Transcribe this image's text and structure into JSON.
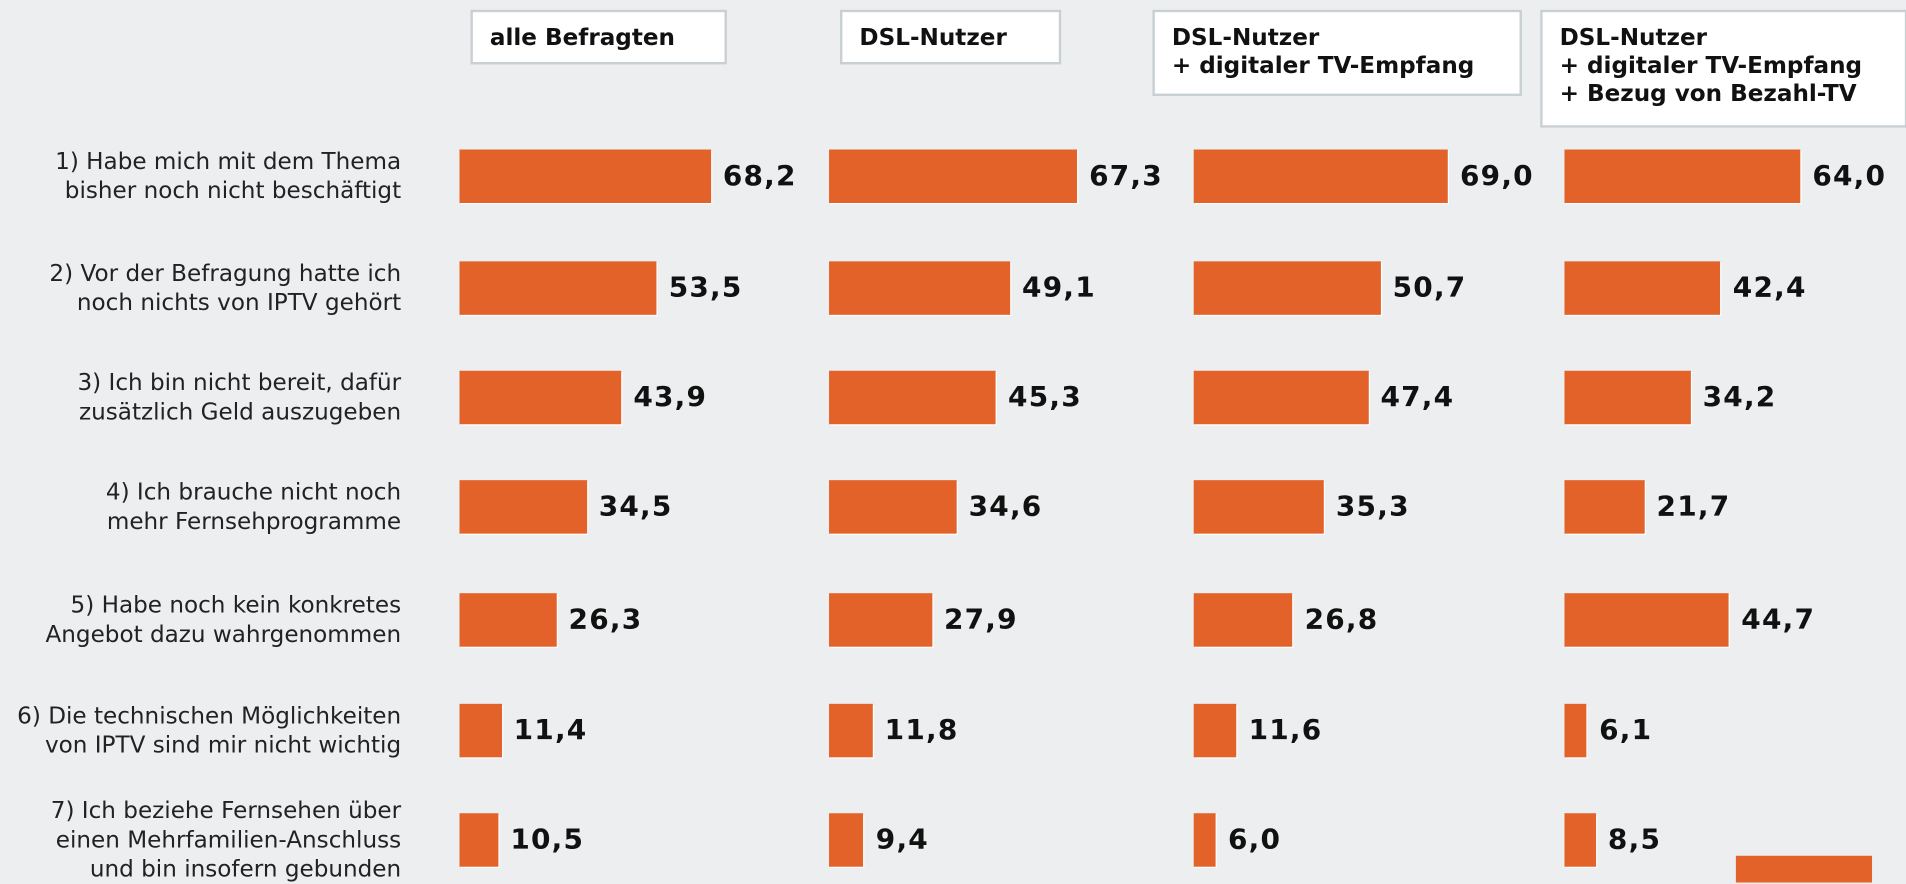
{
  "chart_data": {
    "type": "bar",
    "orientation": "horizontal",
    "categories": [
      "1) Habe mich mit dem Thema\nbisher noch nicht beschäftigt",
      "2) Vor der Befragung hatte ich\nnoch nichts von IPTV gehört",
      "3) Ich bin nicht bereit, dafür\nzusätzlich Geld auszugeben",
      "4) Ich brauche nicht  noch\nmehr Fernsehprogramme",
      "5) Habe noch kein konkretes\nAngebot dazu wahrgenommen",
      "6) Die technischen Möglichkeiten\nvon IPTV sind mir nicht wichtig",
      "7) Ich beziehe Fernsehen über\neinen Mehrfamilien-Anschluss\nund bin insofern gebunden"
    ],
    "series": [
      {
        "name": "alle Befragten",
        "color": "#e2622a",
        "values": [
          68.2,
          53.5,
          43.9,
          34.5,
          26.3,
          11.4,
          10.5
        ],
        "value_labels": [
          "68,2",
          "53,5",
          "43,9",
          "34,5",
          "26,3",
          "11,4",
          "10,5"
        ]
      },
      {
        "name": "DSL-Nutzer",
        "color": "#e2622a",
        "values": [
          67.3,
          49.1,
          45.3,
          34.6,
          27.9,
          11.8,
          9.4
        ],
        "value_labels": [
          "67,3",
          "49,1",
          "45,3",
          "34,6",
          "27,9",
          "11,8",
          "9,4"
        ]
      },
      {
        "name": "DSL-Nutzer\n+ digitaler TV-Empfang",
        "color": "#e2622a",
        "values": [
          69.0,
          50.7,
          47.4,
          35.3,
          26.8,
          11.6,
          6.0
        ],
        "value_labels": [
          "69,0",
          "50,7",
          "47,4",
          "35,3",
          "26,8",
          "11,6",
          "6,0"
        ]
      },
      {
        "name": "DSL-Nutzer\n+ digitaler TV-Empfang\n+ Bezug von Bezahl-TV",
        "color": "#e2622a",
        "values": [
          64.0,
          42.4,
          34.2,
          21.7,
          44.7,
          6.1,
          8.5
        ],
        "value_labels": [
          "64,0",
          "42,4",
          "34,2",
          "21,7",
          "44,7",
          "6,1",
          "8,5"
        ]
      }
    ]
  }
}
